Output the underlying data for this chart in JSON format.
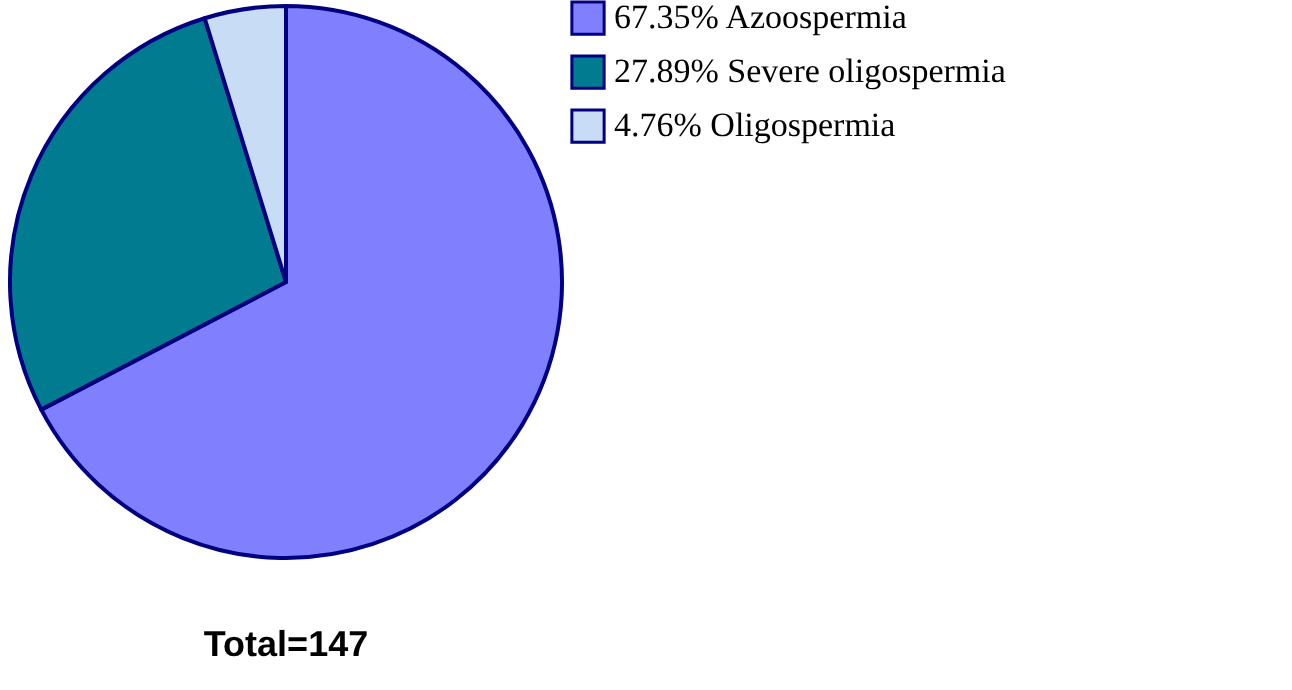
{
  "chart_data": {
    "type": "pie",
    "categories": [
      "Azoospermia",
      "Severe oligospermia",
      "Oligospermia"
    ],
    "values": [
      67.35,
      27.89,
      4.76
    ],
    "value_labels": [
      "67.35%",
      "27.89%",
      "4.76%"
    ],
    "colors": [
      "#8080ff",
      "#007b8f",
      "#c8dcf6"
    ],
    "legend": "top right",
    "annotations": [
      "Total=147"
    ]
  }
}
